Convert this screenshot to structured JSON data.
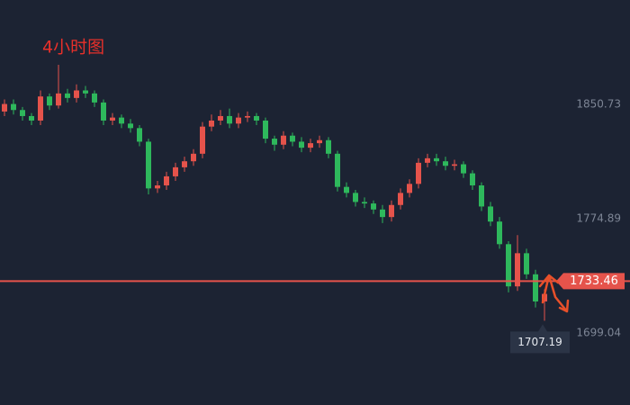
{
  "chart_data": {
    "type": "candlestick",
    "title": "4小时图",
    "open": [
      1846,
      1851,
      1847,
      1843,
      1840,
      1856,
      1850,
      1858,
      1855,
      1860,
      1858,
      1852,
      1840,
      1842,
      1838,
      1835,
      1826,
      1795,
      1797,
      1803,
      1809,
      1813,
      1818,
      1836,
      1840,
      1843,
      1838,
      1842,
      1843,
      1840,
      1828,
      1824,
      1830,
      1826,
      1822,
      1825,
      1827,
      1818,
      1796,
      1792,
      1786,
      1785,
      1781,
      1776,
      1784,
      1792,
      1798,
      1812,
      1815,
      1813,
      1810,
      1811,
      1805,
      1797,
      1783,
      1773,
      1758,
      1730,
      1752,
      1738,
      1720
    ],
    "high": [
      1854,
      1854,
      1849,
      1845,
      1860,
      1858,
      1877,
      1861,
      1864,
      1863,
      1860,
      1854,
      1845,
      1844,
      1841,
      1837,
      1828,
      1800,
      1806,
      1812,
      1816,
      1821,
      1839,
      1844,
      1847,
      1848,
      1845,
      1846,
      1845,
      1842,
      1830,
      1833,
      1832,
      1829,
      1828,
      1830,
      1829,
      1820,
      1799,
      1794,
      1789,
      1787,
      1784,
      1787,
      1795,
      1801,
      1815,
      1818,
      1818,
      1816,
      1814,
      1813,
      1807,
      1799,
      1786,
      1776,
      1760,
      1764,
      1755,
      1741,
      1728
    ],
    "low": [
      1843,
      1844,
      1840,
      1837,
      1837,
      1847,
      1848,
      1852,
      1852,
      1855,
      1849,
      1837,
      1837,
      1835,
      1832,
      1823,
      1791,
      1792,
      1794,
      1800,
      1806,
      1810,
      1815,
      1833,
      1837,
      1835,
      1835,
      1839,
      1837,
      1825,
      1820,
      1821,
      1823,
      1819,
      1819,
      1822,
      1815,
      1793,
      1789,
      1783,
      1782,
      1778,
      1772,
      1773,
      1781,
      1789,
      1795,
      1809,
      1810,
      1807,
      1807,
      1802,
      1794,
      1780,
      1770,
      1755,
      1726,
      1727,
      1735,
      1716,
      1707.19
    ],
    "close": [
      1851,
      1847,
      1843,
      1840,
      1856,
      1850,
      1858,
      1855,
      1860,
      1858,
      1852,
      1840,
      1842,
      1838,
      1835,
      1826,
      1795,
      1797,
      1803,
      1809,
      1813,
      1818,
      1836,
      1840,
      1843,
      1838,
      1842,
      1843,
      1840,
      1828,
      1824,
      1830,
      1826,
      1822,
      1825,
      1827,
      1818,
      1796,
      1792,
      1786,
      1785,
      1781,
      1776,
      1784,
      1792,
      1798,
      1812,
      1815,
      1813,
      1810,
      1811,
      1805,
      1797,
      1783,
      1773,
      1758,
      1730,
      1752,
      1738,
      1720,
      1725
    ],
    "up_color": "#e5534b",
    "down_color": "#2eb85c",
    "price_line": 1733.46,
    "price_line_color": "#e5534b",
    "ylim": [
      1651.3,
      1920.0
    ],
    "yticks": [
      1699.04,
      1774.89,
      1850.73
    ],
    "grid": false
  }
}
